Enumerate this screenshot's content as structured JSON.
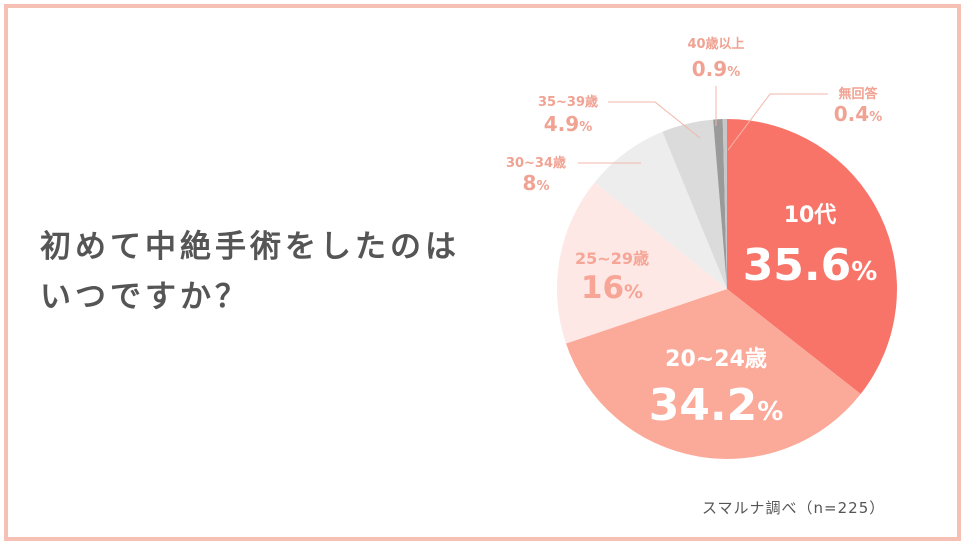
{
  "question": {
    "line1": "初めて中絶手術をしたのは",
    "line2": "いつですか？"
  },
  "source": "スマルナ調べ（n=225）",
  "chart_data": {
    "type": "pie",
    "slices": [
      {
        "label": "10代",
        "value": 35.6,
        "value_text": "35.6",
        "unit": "%",
        "color": "#f87468",
        "label_color": "#ffffff",
        "outside": false
      },
      {
        "label": "20~24歳",
        "value": 34.2,
        "value_text": "34.2",
        "unit": "%",
        "color": "#fbaa9a",
        "label_color": "#ffffff",
        "outside": false
      },
      {
        "label": "25~29歳",
        "value": 16,
        "value_text": "16",
        "unit": "%",
        "color": "#fde8e5",
        "label_color": "#f6a596",
        "outside": false
      },
      {
        "label": "30~34歳",
        "value": 8,
        "value_text": "8",
        "unit": "%",
        "color": "#ededed",
        "label_color": "#f0a293",
        "outside": true
      },
      {
        "label": "35~39歳",
        "value": 4.9,
        "value_text": "4.9",
        "unit": "%",
        "color": "#dbdbdb",
        "label_color": "#f0a293",
        "outside": true
      },
      {
        "label": "40歳以上",
        "value": 0.9,
        "value_text": "0.9",
        "unit": "%",
        "color": "#9a9a9a",
        "label_color": "#f0a293",
        "outside": true
      },
      {
        "label": "無回答",
        "value": 0.4,
        "value_text": "0.4",
        "unit": "%",
        "color": "#c7c7c7",
        "label_color": "#f0a293",
        "outside": true
      }
    ]
  }
}
